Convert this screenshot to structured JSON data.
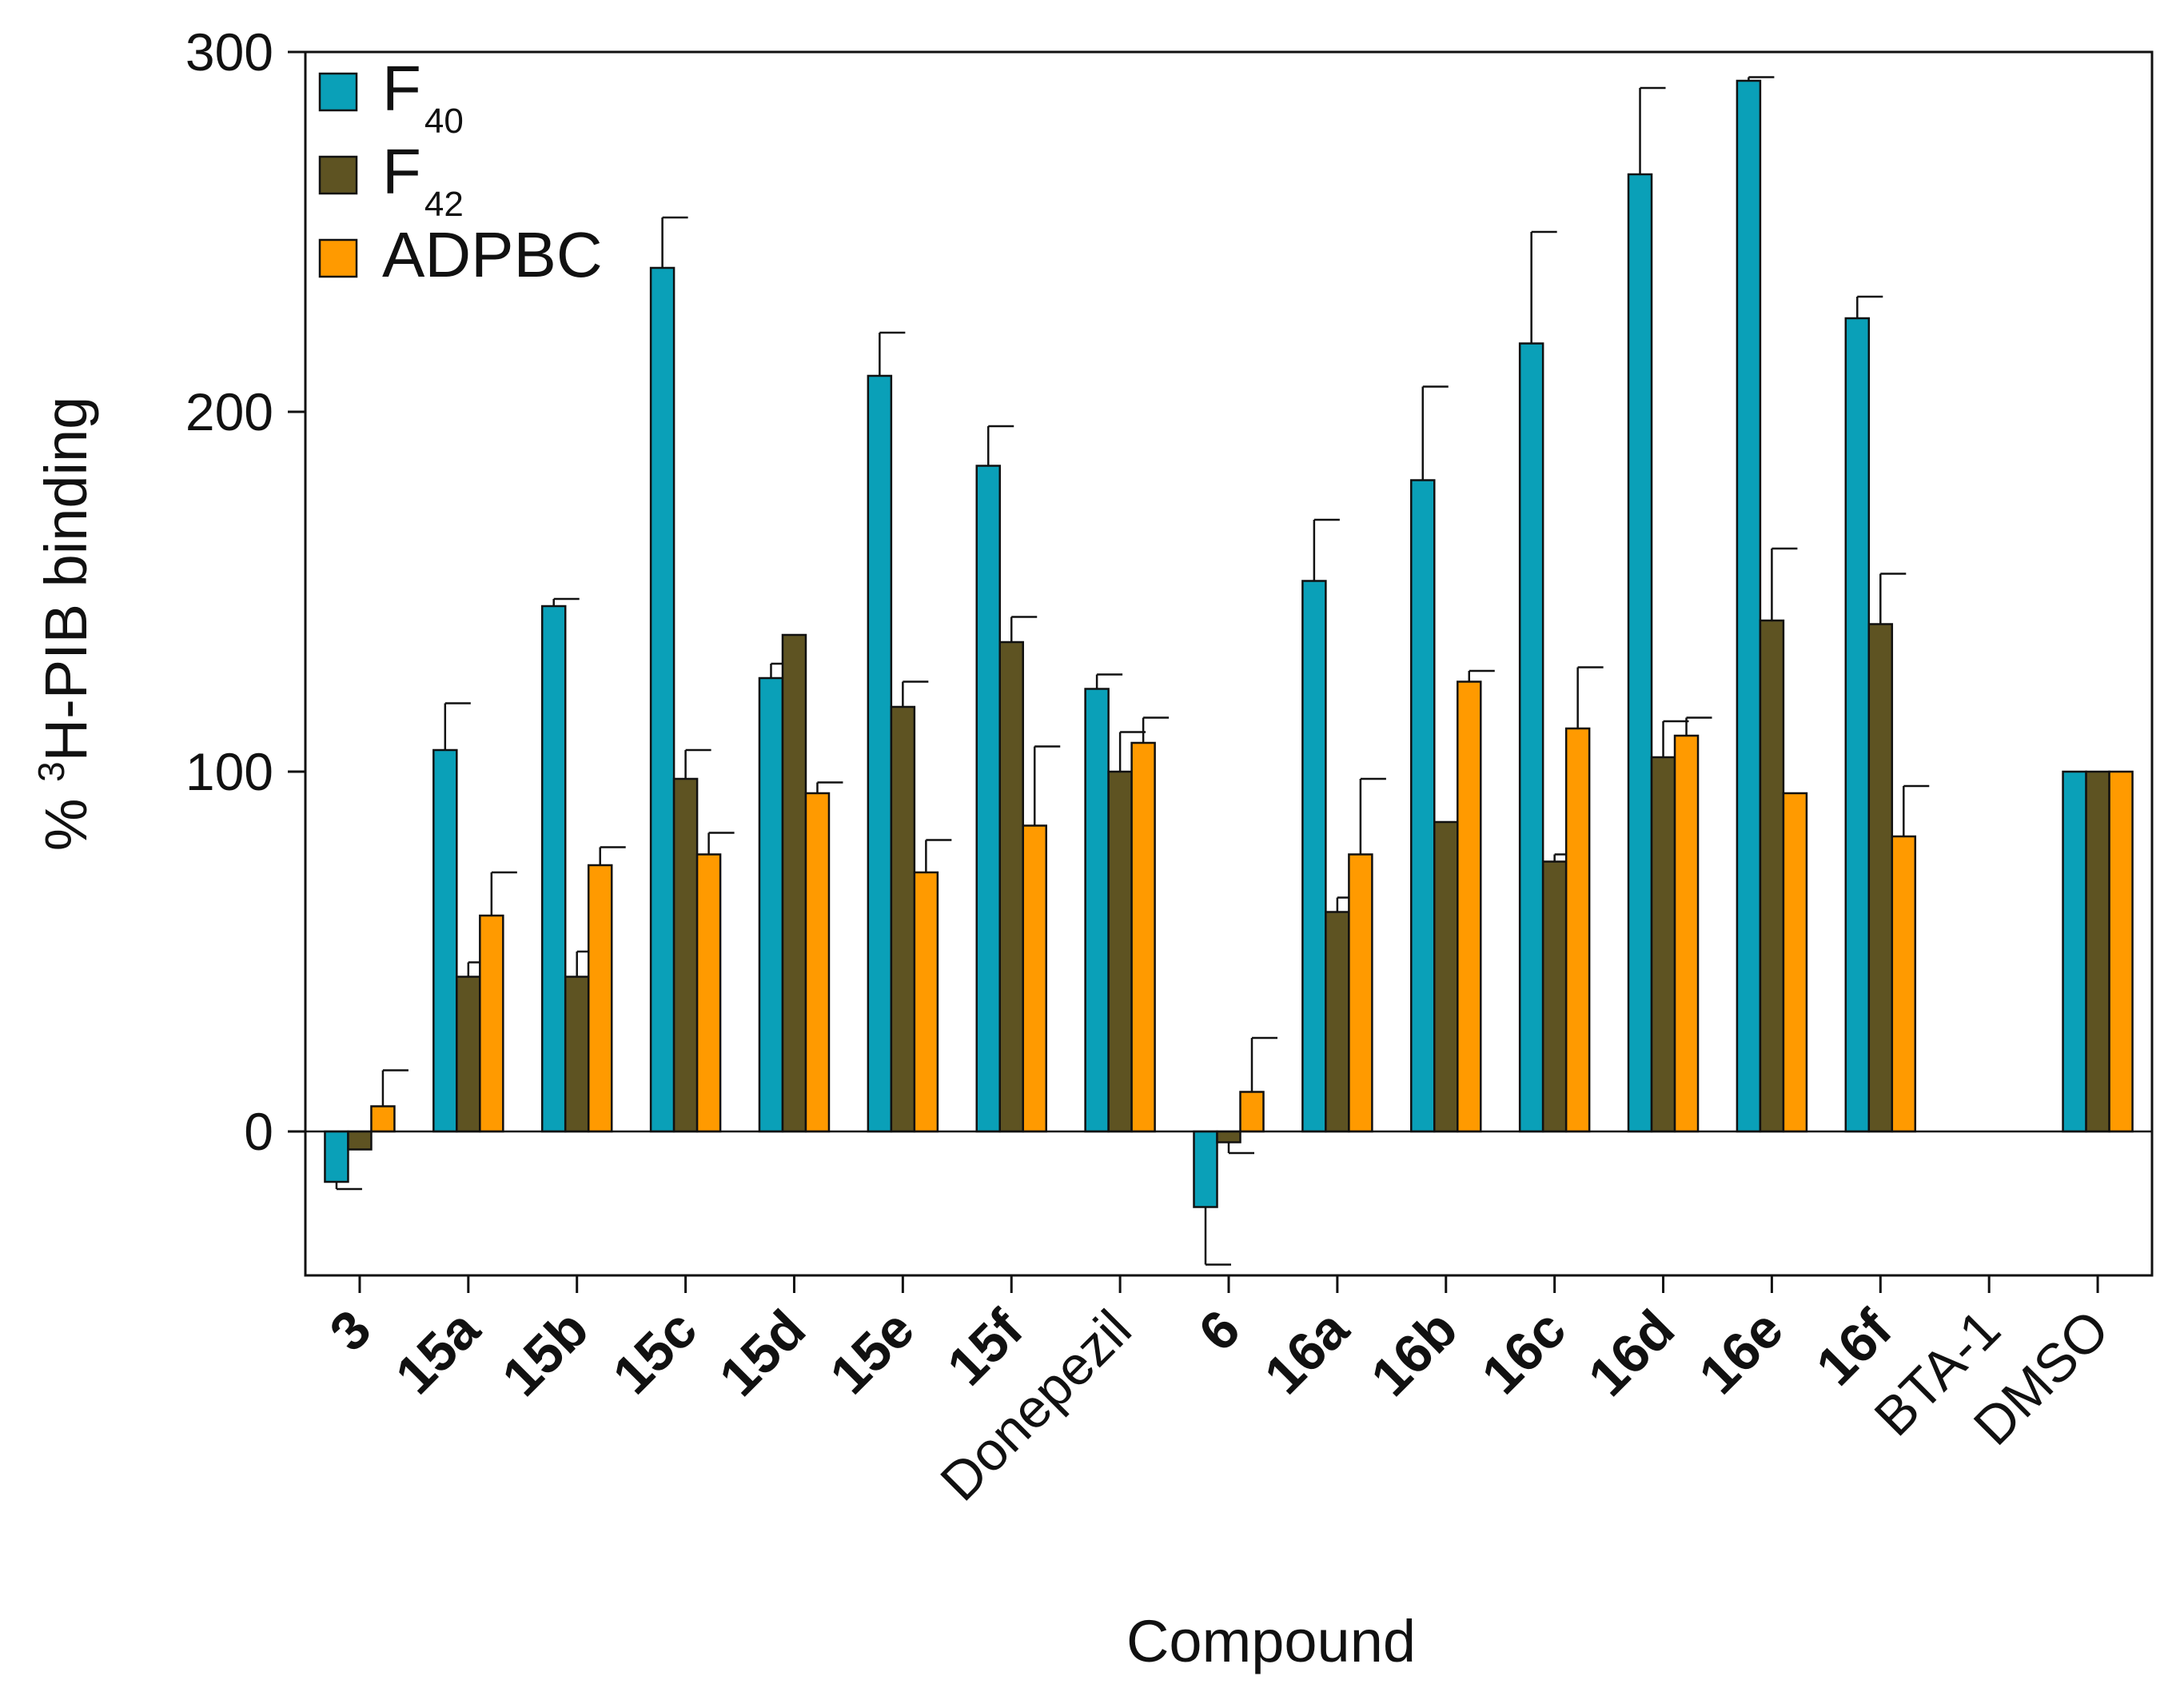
{
  "chart_data": {
    "type": "bar",
    "title": "",
    "xlabel": "Compound",
    "ylabel": "% ³H-PIB binding",
    "ylabel_parts": {
      "prefix": "% ",
      "superscript": "3",
      "suffix": "H-PIB binding"
    },
    "ylim": [
      -40,
      300
    ],
    "yticks": [
      0,
      100,
      200,
      300
    ],
    "grid": false,
    "legend_position": "top-left",
    "categories": [
      "3",
      "15a",
      "15b",
      "15c",
      "15d",
      "15e",
      "15f",
      "Donepezil",
      "6",
      "16a",
      "16b",
      "16c",
      "16d",
      "16e",
      "16f",
      "BTA-1",
      "DMSO"
    ],
    "category_bold": [
      true,
      true,
      true,
      true,
      true,
      true,
      true,
      false,
      true,
      true,
      true,
      true,
      true,
      true,
      true,
      false,
      false
    ],
    "series": [
      {
        "name": "F40",
        "legend_main": "F",
        "legend_sub": "40",
        "color": "#0aa0b8",
        "values": [
          -14,
          106,
          146,
          240,
          126,
          210,
          185,
          123,
          -21,
          153,
          181,
          219,
          266,
          292,
          226,
          null,
          100
        ],
        "errors": [
          2,
          13,
          2,
          14,
          4,
          12,
          11,
          4,
          16,
          17,
          26,
          31,
          24,
          1,
          6,
          null,
          0
        ]
      },
      {
        "name": "F42",
        "legend_main": "F",
        "legend_sub": "42",
        "color": "#5e5322",
        "values": [
          -5,
          43,
          43,
          98,
          138,
          118,
          136,
          100,
          -3,
          61,
          86,
          75,
          104,
          142,
          141,
          null,
          100
        ],
        "errors": [
          0,
          4,
          7,
          8,
          0,
          7,
          7,
          11,
          3,
          4,
          0,
          2,
          10,
          20,
          14,
          null,
          0
        ]
      },
      {
        "name": "ADPBC",
        "legend_main": "ADPBC",
        "legend_sub": "",
        "color": "#ff9a00",
        "values": [
          7,
          60,
          74,
          77,
          94,
          72,
          85,
          108,
          11,
          77,
          125,
          112,
          110,
          94,
          82,
          null,
          100
        ],
        "errors": [
          10,
          12,
          5,
          6,
          3,
          9,
          22,
          7,
          15,
          21,
          3,
          17,
          5,
          0,
          14,
          null,
          0
        ]
      }
    ]
  }
}
